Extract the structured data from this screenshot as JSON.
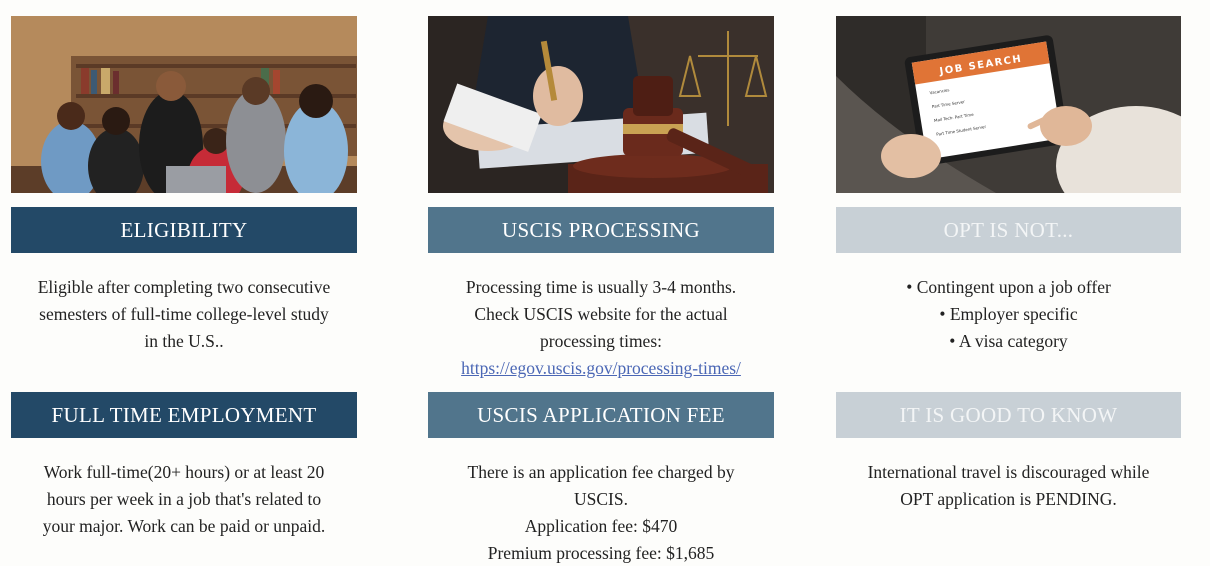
{
  "columns": [
    {
      "photo_icon": "students-cheering-photo",
      "heading_top": "ELIGIBILITY",
      "body_top": [
        "Eligible after completing two consecutive",
        "semesters of full-time college-level study",
        "in the U.S.."
      ],
      "heading_bottom": "FULL TIME EMPLOYMENT",
      "body_bottom": [
        "Work full-time(20+ hours) or at least 20",
        "hours per week in a job that's related to",
        "your major. Work can be paid or unpaid."
      ]
    },
    {
      "photo_icon": "gavel-and-signing-photo",
      "heading_top": "USCIS PROCESSING",
      "body_top": [
        "Processing time is usually 3-4 months.",
        "Check USCIS website for the actual",
        "processing times:"
      ],
      "link": "https://egov.uscis.gov/processing-times/",
      "heading_bottom": "USCIS APPLICATION FEE",
      "body_bottom": [
        "There is an application fee charged by",
        "USCIS.",
        "Application fee: $470",
        "Premium processing fee: $1,685"
      ]
    },
    {
      "photo_icon": "job-search-tablet-photo",
      "photo_text": {
        "title": "JOB SEARCH",
        "lines": [
          "Vacancies",
          "Part Time Server",
          "Mail Tech: Part Time",
          "Part Time Student Server"
        ]
      },
      "heading_top": "OPT IS NOT...",
      "bullets": [
        "• Contingent upon a job offer",
        "• Employer specific",
        "• A visa category"
      ],
      "heading_bottom": "IT IS GOOD TO KNOW",
      "body_bottom": [
        "International travel is discouraged while",
        "OPT application is PENDING."
      ]
    }
  ],
  "colors": {
    "band_dark": "#234967",
    "band_mid": "#51758c",
    "band_light": "#c8d0d6",
    "link": "#4b67b5"
  }
}
